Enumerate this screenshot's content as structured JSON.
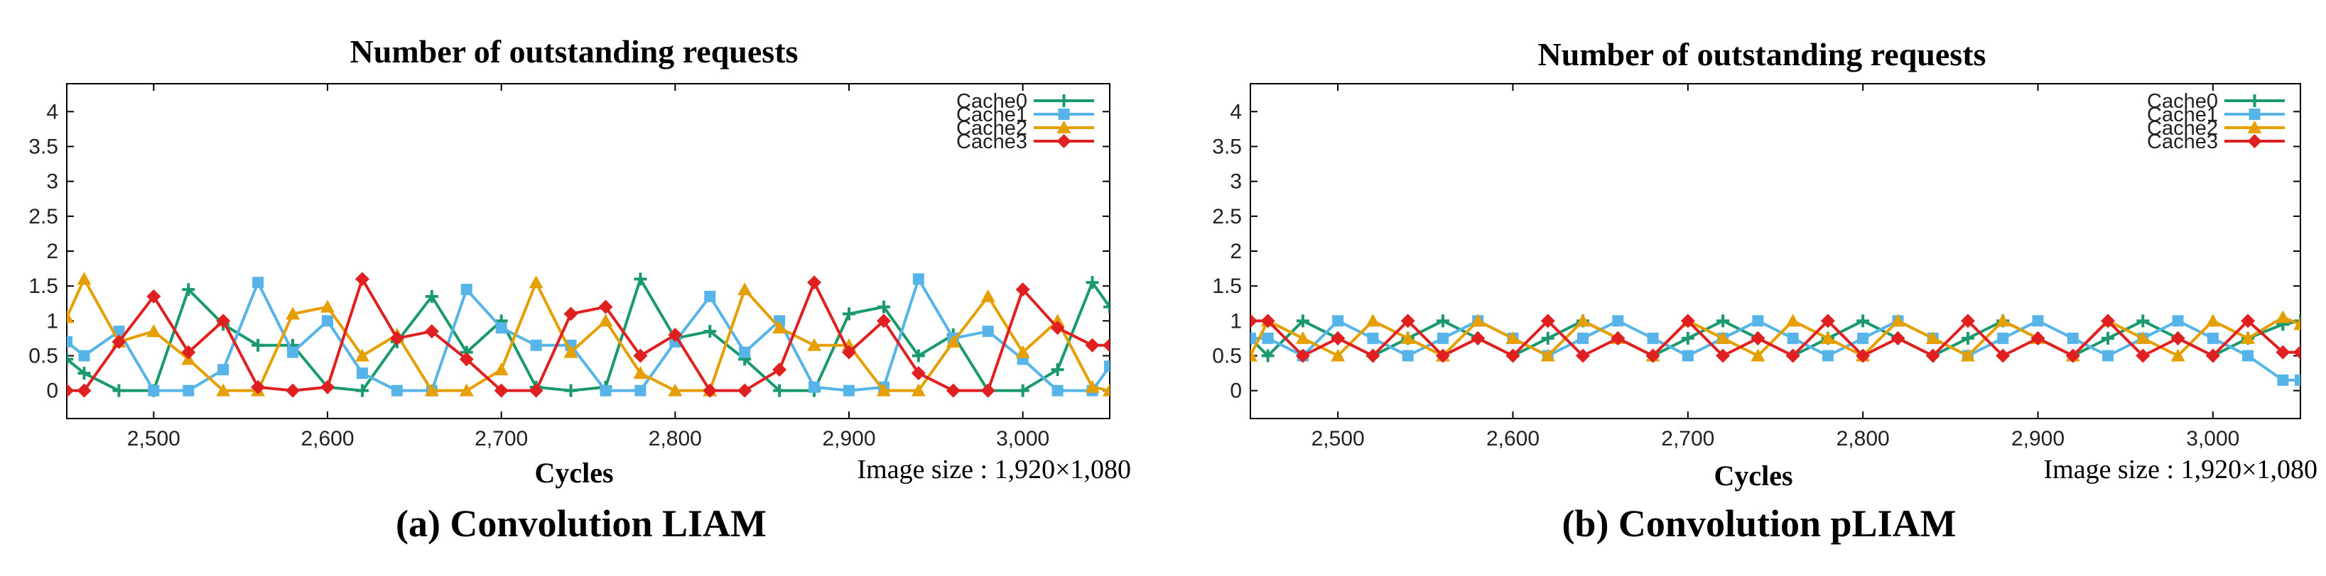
{
  "chart_data": [
    {
      "type": "line",
      "title": "Number of outstanding requests",
      "xlabel": "Cycles",
      "ylabel": "",
      "caption": "(a) Convolution LIAM",
      "image_size_note": "Image size : 1,920×1,080",
      "xlim": [
        2450,
        3050
      ],
      "ylim": [
        -0.4,
        4.4
      ],
      "x_ticks": [
        2500,
        2600,
        2700,
        2800,
        2900,
        3000
      ],
      "x_tick_labels": [
        "2,500",
        "2,600",
        "2,700",
        "2,800",
        "2,900",
        "3,000"
      ],
      "y_ticks": [
        0,
        0.5,
        1,
        1.5,
        2,
        2.5,
        3,
        3.5,
        4
      ],
      "y_tick_labels": [
        "0",
        "0.5",
        "1",
        "1.5",
        "2",
        "2.5",
        "3",
        "3.5",
        "4"
      ],
      "x": [
        2450,
        2460,
        2480,
        2500,
        2520,
        2540,
        2560,
        2580,
        2600,
        2620,
        2640,
        2660,
        2680,
        2700,
        2720,
        2740,
        2760,
        2780,
        2800,
        2820,
        2840,
        2860,
        2880,
        2900,
        2920,
        2940,
        2960,
        2980,
        3000,
        3020,
        3040,
        3050
      ],
      "series": [
        {
          "name": "Cache0",
          "color": "#1a9a6c",
          "marker": "plus",
          "values": [
            0.45,
            0.25,
            0.0,
            0.0,
            1.45,
            0.95,
            0.65,
            0.65,
            0.05,
            0.0,
            0.7,
            1.35,
            0.55,
            1.0,
            0.05,
            0.0,
            0.05,
            1.6,
            0.75,
            0.85,
            0.45,
            0.0,
            0.0,
            1.1,
            1.2,
            0.5,
            0.8,
            0.0,
            0.0,
            0.3,
            1.55,
            1.2
          ]
        },
        {
          "name": "Cache1",
          "color": "#56b4e9",
          "marker": "square",
          "values": [
            0.7,
            0.5,
            0.85,
            0.0,
            0.0,
            0.3,
            1.55,
            0.55,
            1.0,
            0.25,
            0.0,
            0.0,
            1.45,
            0.9,
            0.65,
            0.65,
            0.0,
            0.0,
            0.7,
            1.35,
            0.55,
            1.0,
            0.05,
            0.0,
            0.05,
            1.6,
            0.75,
            0.85,
            0.45,
            0.0,
            0.0,
            0.35
          ]
        },
        {
          "name": "Cache2",
          "color": "#e69f00",
          "marker": "triangle",
          "values": [
            1.05,
            1.6,
            0.7,
            0.85,
            0.45,
            0.0,
            0.0,
            1.1,
            1.2,
            0.5,
            0.8,
            0.0,
            0.0,
            0.3,
            1.55,
            0.55,
            1.0,
            0.25,
            0.0,
            0.0,
            1.45,
            0.9,
            0.65,
            0.65,
            0.0,
            0.0,
            0.7,
            1.35,
            0.55,
            1.0,
            0.05,
            0.0
          ]
        },
        {
          "name": "Cache3",
          "color": "#e02020",
          "marker": "diamond",
          "values": [
            0.0,
            0.0,
            0.7,
            1.35,
            0.55,
            1.0,
            0.05,
            0.0,
            0.05,
            1.6,
            0.75,
            0.85,
            0.45,
            0.0,
            0.0,
            1.1,
            1.2,
            0.5,
            0.8,
            0.0,
            0.0,
            0.3,
            1.55,
            0.55,
            1.0,
            0.25,
            0.0,
            0.0,
            1.45,
            0.9,
            0.65,
            0.65
          ]
        }
      ]
    },
    {
      "type": "line",
      "title": "Number of outstanding requests",
      "xlabel": "Cycles",
      "ylabel": "",
      "caption": "(b) Convolution pLIAM",
      "image_size_note": "Image size : 1,920×1,080",
      "xlim": [
        2450,
        3050
      ],
      "ylim": [
        -0.4,
        4.4
      ],
      "x_ticks": [
        2500,
        2600,
        2700,
        2800,
        2900,
        3000
      ],
      "x_tick_labels": [
        "2,500",
        "2,600",
        "2,700",
        "2,800",
        "2,900",
        "3,000"
      ],
      "y_ticks": [
        0,
        0.5,
        1,
        1.5,
        2,
        2.5,
        3,
        3.5,
        4
      ],
      "y_tick_labels": [
        "0",
        "0.5",
        "1",
        "1.5",
        "2",
        "2.5",
        "3",
        "3.5",
        "4"
      ],
      "x": [
        2450,
        2460,
        2480,
        2500,
        2520,
        2540,
        2560,
        2580,
        2600,
        2620,
        2640,
        2660,
        2680,
        2700,
        2720,
        2740,
        2760,
        2780,
        2800,
        2820,
        2840,
        2860,
        2880,
        2900,
        2920,
        2940,
        2960,
        2980,
        3000,
        3020,
        3040,
        3050
      ],
      "series": [
        {
          "name": "Cache0",
          "color": "#1a9a6c",
          "marker": "plus",
          "values": [
            0.75,
            0.5,
            1.0,
            0.75,
            0.5,
            0.75,
            1.0,
            0.75,
            0.5,
            0.75,
            1.0,
            0.75,
            0.5,
            0.75,
            1.0,
            0.75,
            0.5,
            0.75,
            1.0,
            0.75,
            0.5,
            0.75,
            1.0,
            0.75,
            0.5,
            0.75,
            1.0,
            0.75,
            0.5,
            0.75,
            0.95,
            1.0
          ]
        },
        {
          "name": "Cache1",
          "color": "#56b4e9",
          "marker": "square",
          "values": [
            0.75,
            0.75,
            0.5,
            1.0,
            0.75,
            0.5,
            0.75,
            1.0,
            0.75,
            0.5,
            0.75,
            1.0,
            0.75,
            0.5,
            0.75,
            1.0,
            0.75,
            0.5,
            0.75,
            1.0,
            0.75,
            0.5,
            0.75,
            1.0,
            0.75,
            0.5,
            0.75,
            1.0,
            0.75,
            0.5,
            0.15,
            0.15
          ]
        },
        {
          "name": "Cache2",
          "color": "#e69f00",
          "marker": "triangle",
          "values": [
            0.5,
            1.0,
            0.75,
            0.5,
            1.0,
            0.75,
            0.5,
            1.0,
            0.75,
            0.5,
            1.0,
            0.75,
            0.5,
            1.0,
            0.75,
            0.5,
            1.0,
            0.75,
            0.5,
            1.0,
            0.75,
            0.5,
            1.0,
            0.75,
            0.5,
            1.0,
            0.75,
            0.5,
            1.0,
            0.75,
            1.05,
            0.95
          ]
        },
        {
          "name": "Cache3",
          "color": "#e02020",
          "marker": "diamond",
          "values": [
            1.0,
            1.0,
            0.5,
            0.75,
            0.5,
            1.0,
            0.5,
            0.75,
            0.5,
            1.0,
            0.5,
            0.75,
            0.5,
            1.0,
            0.5,
            0.75,
            0.5,
            1.0,
            0.5,
            0.75,
            0.5,
            1.0,
            0.5,
            0.75,
            0.5,
            1.0,
            0.5,
            0.75,
            0.5,
            1.0,
            0.55,
            0.55
          ]
        }
      ]
    }
  ]
}
